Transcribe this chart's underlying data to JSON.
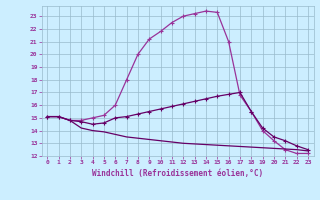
{
  "background_color": "#cceeff",
  "grid_color": "#99bbcc",
  "line_color": "#993399",
  "xlabel": "Windchill (Refroidissement éolien,°C)",
  "xlim": [
    -0.5,
    23.5
  ],
  "ylim": [
    12,
    23.8
  ],
  "yticks": [
    12,
    13,
    14,
    15,
    16,
    17,
    18,
    19,
    20,
    21,
    22,
    23
  ],
  "xticks": [
    0,
    1,
    2,
    3,
    4,
    5,
    6,
    7,
    8,
    9,
    10,
    11,
    12,
    13,
    14,
    15,
    16,
    17,
    18,
    19,
    20,
    21,
    22,
    23
  ],
  "curve1_x": [
    0,
    1,
    2,
    3,
    4,
    5,
    6,
    7,
    8,
    9,
    10,
    11,
    12,
    13,
    14,
    15,
    16,
    17,
    18,
    19,
    20,
    21,
    22,
    23
  ],
  "curve1_y": [
    15.1,
    15.1,
    14.8,
    14.8,
    15.0,
    15.2,
    16.0,
    18.0,
    20.0,
    21.2,
    21.8,
    22.5,
    23.0,
    23.2,
    23.4,
    23.3,
    21.0,
    16.8,
    15.5,
    14.0,
    13.2,
    12.5,
    12.2,
    12.2
  ],
  "curve2_x": [
    0,
    1,
    2,
    3,
    4,
    5,
    6,
    7,
    8,
    9,
    10,
    11,
    12,
    13,
    14,
    15,
    16,
    17,
    18,
    19,
    20,
    21,
    22,
    23
  ],
  "curve2_y": [
    15.1,
    15.1,
    14.8,
    14.7,
    14.5,
    14.6,
    15.0,
    15.1,
    15.3,
    15.5,
    15.7,
    15.9,
    16.1,
    16.3,
    16.5,
    16.7,
    16.85,
    17.0,
    15.5,
    14.2,
    13.5,
    13.2,
    12.8,
    12.5
  ],
  "curve3_x": [
    0,
    1,
    2,
    3,
    4,
    5,
    6,
    7,
    8,
    9,
    10,
    11,
    12,
    13,
    14,
    15,
    16,
    17,
    18,
    19,
    20,
    21,
    22,
    23
  ],
  "curve3_y": [
    15.1,
    15.1,
    14.8,
    14.2,
    14.0,
    13.9,
    13.7,
    13.5,
    13.4,
    13.3,
    13.2,
    13.1,
    13.0,
    12.95,
    12.9,
    12.85,
    12.8,
    12.75,
    12.7,
    12.65,
    12.6,
    12.55,
    12.5,
    12.4
  ]
}
